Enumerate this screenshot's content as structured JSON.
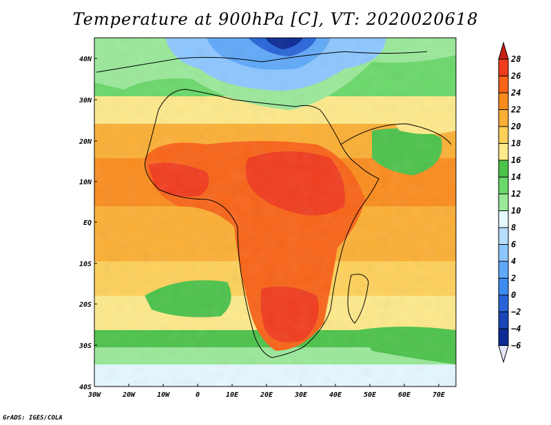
{
  "title": "Temperature at 900hPa [C], VT: 2020020618",
  "footer": "GrADS: IGES/COLA",
  "map": {
    "region": "Africa",
    "lon_range": [
      -30,
      75
    ],
    "lat_range": [
      -40,
      45
    ],
    "lat_labels": [
      "40N",
      "30N",
      "20N",
      "10N",
      "EQ",
      "10S",
      "20S",
      "30S",
      "40S"
    ],
    "lon_labels": [
      "30W",
      "20W",
      "10W",
      "0",
      "10E",
      "20E",
      "30E",
      "40E",
      "50E",
      "60E",
      "70E"
    ]
  },
  "colorbar": {
    "labels": [
      "28",
      "26",
      "24",
      "22",
      "20",
      "18",
      "16",
      "14",
      "12",
      "10",
      "8",
      "6",
      "4",
      "2",
      "0",
      "−2",
      "−4",
      "−6"
    ],
    "colors": [
      "#f03c1e",
      "#f86418",
      "#fa8c1e",
      "#fbaf35",
      "#fdd05a",
      "#fde98a",
      "#4cc24a",
      "#6ad86a",
      "#9ae89a",
      "#e4f8ff",
      "#b6deff",
      "#8cc6ff",
      "#5fa8f8",
      "#3c8cf0",
      "#2864d8",
      "#1a46b8",
      "#0c2a96"
    ],
    "top_color": "#c82014",
    "bottom_color": "#e4e8ff"
  }
}
